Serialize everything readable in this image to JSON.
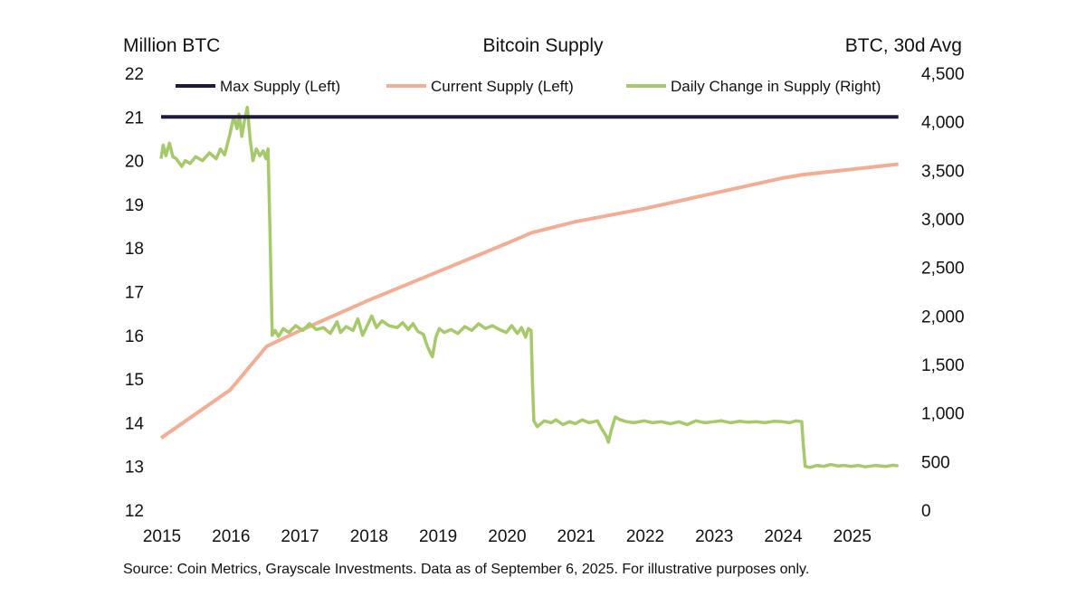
{
  "chart_data": {
    "type": "line",
    "title": "Bitcoin Supply",
    "left_axis_label": "Million BTC",
    "right_axis_label": "BTC, 30d Avg",
    "source": "Source: Coin Metrics, Grayscale Investments. Data as of September 6, 2025. For illustrative purposes only.",
    "x_ticks": [
      "2015",
      "2016",
      "2017",
      "2018",
      "2019",
      "2020",
      "2021",
      "2022",
      "2023",
      "2024",
      "2025"
    ],
    "xlim": [
      2015.0,
      2025.75
    ],
    "left_ylim": [
      12,
      22
    ],
    "left_ticks": [
      "12",
      "13",
      "14",
      "15",
      "16",
      "17",
      "18",
      "19",
      "20",
      "21",
      "22"
    ],
    "right_ylim": [
      0,
      4500
    ],
    "right_ticks": [
      "0",
      "500",
      "1,000",
      "1,500",
      "2,000",
      "2,500",
      "3,000",
      "3,500",
      "4,000",
      "4,500"
    ],
    "grid": false,
    "legend_position": "top",
    "series": [
      {
        "name": "Max Supply (Left)",
        "axis": "left",
        "color": "#1f1a3d",
        "points": [
          [
            2015.0,
            21.0
          ],
          [
            2025.68,
            21.0
          ]
        ]
      },
      {
        "name": "Current Supply (Left)",
        "axis": "left",
        "color": "#f4ad95",
        "points": [
          [
            2015.0,
            13.65
          ],
          [
            2016.0,
            14.75
          ],
          [
            2016.53,
            15.75
          ],
          [
            2017.0,
            16.1
          ],
          [
            2018.0,
            16.8
          ],
          [
            2019.0,
            17.45
          ],
          [
            2020.0,
            18.1
          ],
          [
            2020.37,
            18.35
          ],
          [
            2021.0,
            18.6
          ],
          [
            2022.0,
            18.9
          ],
          [
            2023.0,
            19.25
          ],
          [
            2024.0,
            19.6
          ],
          [
            2024.3,
            19.68
          ],
          [
            2025.0,
            19.8
          ],
          [
            2025.68,
            19.92
          ]
        ]
      },
      {
        "name": "Daily Change in Supply (Right)",
        "axis": "right",
        "color": "#a6c96a",
        "points": [
          [
            2015.0,
            3620
          ],
          [
            2015.03,
            3760
          ],
          [
            2015.07,
            3650
          ],
          [
            2015.12,
            3780
          ],
          [
            2015.17,
            3640
          ],
          [
            2015.22,
            3620
          ],
          [
            2015.3,
            3540
          ],
          [
            2015.35,
            3600
          ],
          [
            2015.42,
            3570
          ],
          [
            2015.5,
            3640
          ],
          [
            2015.6,
            3600
          ],
          [
            2015.7,
            3680
          ],
          [
            2015.8,
            3620
          ],
          [
            2015.86,
            3720
          ],
          [
            2015.92,
            3660
          ],
          [
            2016.0,
            3880
          ],
          [
            2016.05,
            4050
          ],
          [
            2016.1,
            3930
          ],
          [
            2016.13,
            4080
          ],
          [
            2016.17,
            3850
          ],
          [
            2016.21,
            4020
          ],
          [
            2016.25,
            4150
          ],
          [
            2016.29,
            3820
          ],
          [
            2016.33,
            3600
          ],
          [
            2016.38,
            3720
          ],
          [
            2016.43,
            3650
          ],
          [
            2016.48,
            3700
          ],
          [
            2016.52,
            3620
          ],
          [
            2016.55,
            3720
          ],
          [
            2016.58,
            2800
          ],
          [
            2016.61,
            1800
          ],
          [
            2016.65,
            1850
          ],
          [
            2016.7,
            1790
          ],
          [
            2016.77,
            1870
          ],
          [
            2016.85,
            1830
          ],
          [
            2016.95,
            1900
          ],
          [
            2017.05,
            1850
          ],
          [
            2017.15,
            1920
          ],
          [
            2017.25,
            1860
          ],
          [
            2017.35,
            1880
          ],
          [
            2017.45,
            1820
          ],
          [
            2017.55,
            1940
          ],
          [
            2017.6,
            1830
          ],
          [
            2017.68,
            1890
          ],
          [
            2017.78,
            1850
          ],
          [
            2017.85,
            1970
          ],
          [
            2017.92,
            1800
          ],
          [
            2018.0,
            1920
          ],
          [
            2018.05,
            2000
          ],
          [
            2018.12,
            1880
          ],
          [
            2018.2,
            1950
          ],
          [
            2018.3,
            1900
          ],
          [
            2018.42,
            1880
          ],
          [
            2018.5,
            1930
          ],
          [
            2018.58,
            1860
          ],
          [
            2018.65,
            1920
          ],
          [
            2018.72,
            1840
          ],
          [
            2018.8,
            1810
          ],
          [
            2018.85,
            1700
          ],
          [
            2018.9,
            1620
          ],
          [
            2018.93,
            1580
          ],
          [
            2018.98,
            1780
          ],
          [
            2019.03,
            1870
          ],
          [
            2019.1,
            1830
          ],
          [
            2019.2,
            1860
          ],
          [
            2019.3,
            1820
          ],
          [
            2019.4,
            1890
          ],
          [
            2019.5,
            1850
          ],
          [
            2019.6,
            1920
          ],
          [
            2019.7,
            1870
          ],
          [
            2019.8,
            1900
          ],
          [
            2019.9,
            1860
          ],
          [
            2020.0,
            1830
          ],
          [
            2020.08,
            1900
          ],
          [
            2020.16,
            1820
          ],
          [
            2020.22,
            1880
          ],
          [
            2020.28,
            1780
          ],
          [
            2020.32,
            1870
          ],
          [
            2020.36,
            1850
          ],
          [
            2020.38,
            1300
          ],
          [
            2020.4,
            920
          ],
          [
            2020.45,
            860
          ],
          [
            2020.55,
            920
          ],
          [
            2020.65,
            900
          ],
          [
            2020.72,
            930
          ],
          [
            2020.82,
            880
          ],
          [
            2020.92,
            910
          ],
          [
            2021.0,
            890
          ],
          [
            2021.1,
            930
          ],
          [
            2021.2,
            900
          ],
          [
            2021.32,
            920
          ],
          [
            2021.38,
            840
          ],
          [
            2021.45,
            760
          ],
          [
            2021.48,
            700
          ],
          [
            2021.52,
            820
          ],
          [
            2021.58,
            960
          ],
          [
            2021.65,
            930
          ],
          [
            2021.75,
            910
          ],
          [
            2021.85,
            900
          ],
          [
            2022.0,
            920
          ],
          [
            2022.12,
            900
          ],
          [
            2022.25,
            910
          ],
          [
            2022.38,
            890
          ],
          [
            2022.5,
            910
          ],
          [
            2022.62,
            880
          ],
          [
            2022.75,
            920
          ],
          [
            2022.88,
            900
          ],
          [
            2023.0,
            910
          ],
          [
            2023.12,
            920
          ],
          [
            2023.25,
            900
          ],
          [
            2023.38,
            915
          ],
          [
            2023.5,
            905
          ],
          [
            2023.62,
            910
          ],
          [
            2023.75,
            900
          ],
          [
            2023.88,
            915
          ],
          [
            2024.0,
            910
          ],
          [
            2024.1,
            900
          ],
          [
            2024.2,
            920
          ],
          [
            2024.28,
            910
          ],
          [
            2024.3,
            700
          ],
          [
            2024.33,
            450
          ],
          [
            2024.4,
            440
          ],
          [
            2024.5,
            460
          ],
          [
            2024.6,
            450
          ],
          [
            2024.7,
            470
          ],
          [
            2024.8,
            455
          ],
          [
            2024.9,
            460
          ],
          [
            2025.0,
            450
          ],
          [
            2025.1,
            460
          ],
          [
            2025.2,
            445
          ],
          [
            2025.35,
            460
          ],
          [
            2025.5,
            450
          ],
          [
            2025.6,
            462
          ],
          [
            2025.68,
            455
          ]
        ]
      }
    ]
  }
}
